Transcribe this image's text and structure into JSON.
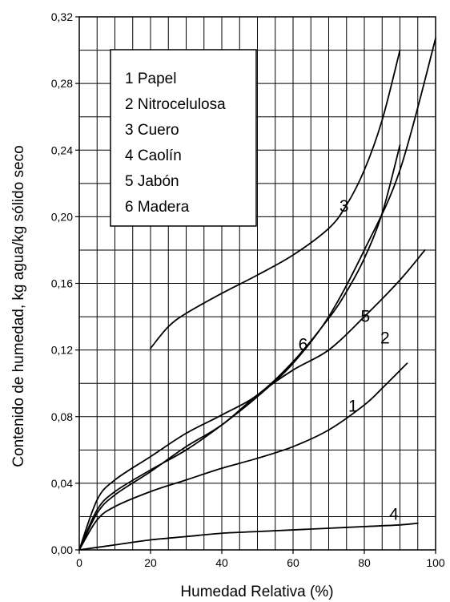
{
  "chart_data": {
    "type": "line",
    "title": "",
    "xlabel": "Humedad Relativa (%)",
    "ylabel": "Contenido de humedad, kg agua/kg sólido seco",
    "xlim": [
      0,
      100
    ],
    "ylim": [
      0,
      0.32
    ],
    "x_ticks": [
      0,
      20,
      40,
      60,
      80,
      100
    ],
    "x_tick_labels": [
      "0",
      "20",
      "40",
      "60",
      "80",
      "100"
    ],
    "y_ticks": [
      0,
      0.04,
      0.08,
      0.12,
      0.16,
      0.2,
      0.24,
      0.28,
      0.32
    ],
    "y_tick_labels": [
      "0,00",
      "0,04",
      "0,08",
      "0,12",
      "0,16",
      "0,20",
      "0,24",
      "0,28",
      "0,32"
    ],
    "grid": true,
    "legend_position": "top-left",
    "legend": [
      "1 Papel",
      "2 Nitrocelulosa",
      "3 Cuero",
      "4 Caolín",
      "5 Jabón",
      "6 Madera"
    ],
    "series": [
      {
        "label": "1",
        "x": [
          0,
          5,
          10,
          20,
          30,
          40,
          50,
          60,
          70,
          80,
          85,
          92
        ],
        "y": [
          0,
          0.018,
          0.026,
          0.035,
          0.042,
          0.049,
          0.055,
          0.062,
          0.072,
          0.087,
          0.097,
          0.112
        ]
      },
      {
        "label": "2",
        "x": [
          0,
          5,
          10,
          20,
          30,
          40,
          50,
          60,
          70,
          80,
          90,
          97
        ],
        "y": [
          0,
          0.022,
          0.033,
          0.047,
          0.062,
          0.075,
          0.093,
          0.108,
          0.12,
          0.14,
          0.162,
          0.18
        ]
      },
      {
        "label": "3",
        "x": [
          20,
          25,
          30,
          40,
          50,
          60,
          70,
          75,
          80,
          85,
          90
        ],
        "y": [
          0.121,
          0.134,
          0.142,
          0.154,
          0.165,
          0.177,
          0.193,
          0.207,
          0.228,
          0.258,
          0.3
        ]
      },
      {
        "label": "4",
        "x": [
          0,
          10,
          20,
          30,
          40,
          50,
          60,
          70,
          80,
          90,
          95
        ],
        "y": [
          0,
          0.003,
          0.006,
          0.008,
          0.01,
          0.011,
          0.012,
          0.013,
          0.014,
          0.015,
          0.016
        ]
      },
      {
        "label": "5",
        "x": [
          0,
          5,
          10,
          20,
          30,
          40,
          50,
          60,
          70,
          80,
          90,
          100
        ],
        "y": [
          0,
          0.024,
          0.035,
          0.048,
          0.06,
          0.075,
          0.092,
          0.112,
          0.14,
          0.18,
          0.228,
          0.307
        ]
      },
      {
        "label": "6",
        "x": [
          0,
          5,
          10,
          20,
          30,
          40,
          50,
          60,
          70,
          75,
          80,
          85,
          90
        ],
        "y": [
          0,
          0.03,
          0.042,
          0.056,
          0.07,
          0.081,
          0.093,
          0.113,
          0.139,
          0.155,
          0.175,
          0.202,
          0.243
        ]
      }
    ],
    "curve_labels": [
      {
        "text": "1",
        "x": 75.5,
        "y": 0.083
      },
      {
        "text": "2",
        "x": 84.5,
        "y": 0.124
      },
      {
        "text": "3",
        "x": 73,
        "y": 0.203
      },
      {
        "text": "4",
        "x": 87,
        "y": 0.018
      },
      {
        "text": "5",
        "x": 79,
        "y": 0.137
      },
      {
        "text": "6",
        "x": 61.5,
        "y": 0.12
      }
    ]
  }
}
